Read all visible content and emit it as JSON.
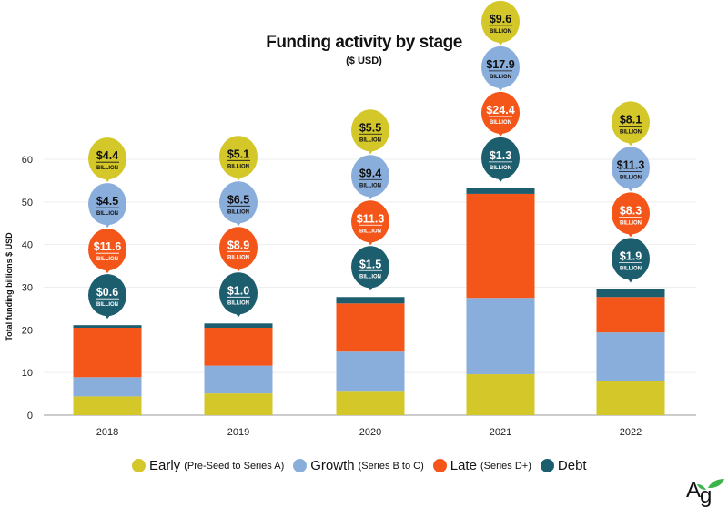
{
  "chart_data": {
    "type": "bar",
    "stacked": true,
    "title": "Funding activity by stage",
    "subtitle": "($ USD)",
    "ylabel": "Total funding billions $ USD",
    "xlabel": "",
    "ylim": [
      0,
      60
    ],
    "yticks": [
      0,
      10,
      20,
      30,
      40,
      50,
      60
    ],
    "grid": true,
    "legend_placement": "bottom",
    "categories": [
      "2018",
      "2019",
      "2020",
      "2021",
      "2022"
    ],
    "series": [
      {
        "name": "Early",
        "note": "(Pre-Seed to Series A)",
        "color": "#d3c72a",
        "values": [
          4.4,
          5.1,
          5.5,
          9.6,
          8.1
        ]
      },
      {
        "name": "Growth",
        "note": "(Series B to C)",
        "color": "#8aaedc",
        "values": [
          4.5,
          6.5,
          9.4,
          17.9,
          11.3
        ]
      },
      {
        "name": "Late",
        "note": "(Series D+)",
        "color": "#f4561a",
        "values": [
          11.6,
          8.9,
          11.3,
          24.4,
          8.3
        ]
      },
      {
        "name": "Debt",
        "note": "",
        "color": "#1c5d6e",
        "values": [
          0.6,
          1.0,
          1.5,
          1.3,
          1.9
        ]
      }
    ],
    "data_labels": [
      [
        "$4.4",
        "$4.5",
        "$11.6",
        "$0.6"
      ],
      [
        "$5.1",
        "$6.5",
        "$8.9",
        "$1.0"
      ],
      [
        "$5.5",
        "$9.4",
        "$11.3",
        "$1.5"
      ],
      [
        "$9.6",
        "$17.9",
        "$24.4",
        "$1.3"
      ],
      [
        "$8.1",
        "$11.3",
        "$8.3",
        "$1.9"
      ]
    ],
    "data_label_unit": "BILLION"
  },
  "logo": {
    "text": "Ag",
    "leaf_color": "#3bb54a"
  }
}
